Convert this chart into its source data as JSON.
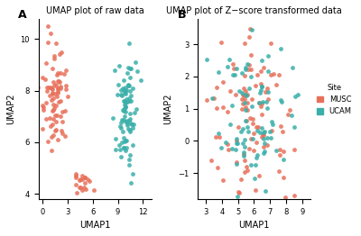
{
  "title_A": "UMAP plot of raw data",
  "title_B": "UMAP plot of Z−score transformed data",
  "label_A": "A",
  "label_B": "B",
  "xlabel": "UMAP1",
  "ylabel": "UMAP2",
  "color_MUSC": "#E8705A",
  "color_UCAM": "#3AAFA9",
  "legend_title": "Site",
  "legend_labels": [
    "MUSC",
    "UCAM"
  ],
  "marker_size": 12,
  "alpha": 0.85,
  "background_color": "#ffffff",
  "seed_A_MUSC": 42,
  "seed_A_UCAM": 99,
  "seed_B_MUSC": 7,
  "seed_B_UCAM": 13,
  "xlim_A": [
    -0.5,
    13
  ],
  "ylim_A": [
    3.8,
    10.8
  ],
  "xticks_A": [
    0,
    3,
    6,
    9,
    12
  ],
  "yticks_A": [
    4,
    6,
    8,
    10
  ],
  "xlim_B": [
    2.5,
    9.5
  ],
  "ylim_B": [
    -1.8,
    3.8
  ],
  "xticks_B": [
    3,
    4,
    5,
    6,
    7,
    8,
    9
  ],
  "yticks_B": [
    -1,
    0,
    1,
    2,
    3
  ]
}
